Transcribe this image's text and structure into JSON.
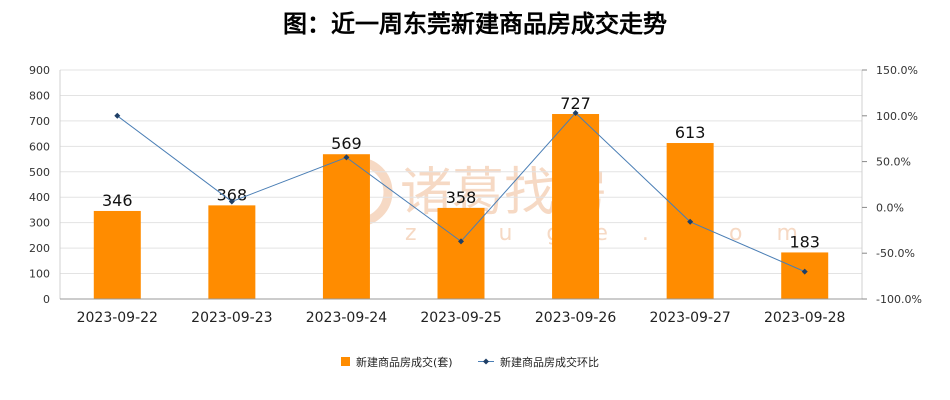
{
  "title": "图：近一周东莞新建商品房成交走势",
  "watermark": {
    "main": "诸葛找房",
    "sub": "zhuge.com"
  },
  "colors": {
    "bar": "#ff8c00",
    "line": "#4a7eb5",
    "marker": "#1f3f66",
    "grid": "#e3e3e3"
  },
  "chart_data": {
    "type": "bar",
    "categories": [
      "2023-09-22",
      "2023-09-23",
      "2023-09-24",
      "2023-09-25",
      "2023-09-26",
      "2023-09-27",
      "2023-09-28"
    ],
    "series": [
      {
        "name": "新建商品房成交(套)",
        "type": "bar",
        "axis": "left",
        "values": [
          346,
          368,
          569,
          358,
          727,
          613,
          183
        ],
        "data_labels": [
          "346",
          "368",
          "569",
          "358",
          "727",
          "613",
          "183"
        ]
      },
      {
        "name": "新建商品房成交环比",
        "type": "line",
        "axis": "right",
        "values": [
          100.0,
          6.4,
          54.6,
          -37.1,
          103.1,
          -15.7,
          -70.1
        ]
      }
    ],
    "y_left": {
      "ylim": [
        0,
        900
      ],
      "ticks": [
        0,
        100,
        200,
        300,
        400,
        500,
        600,
        700,
        800,
        900
      ],
      "tick_labels": [
        "0",
        "100",
        "200",
        "300",
        "400",
        "500",
        "600",
        "700",
        "800",
        "900"
      ]
    },
    "y_right": {
      "ylim": [
        -100,
        150
      ],
      "ticks": [
        -100,
        -50,
        0,
        50,
        100,
        150
      ],
      "tick_labels": [
        "-100.0%",
        "-50.0%",
        "0.0%",
        "50.0%",
        "100.0%",
        "150.0%"
      ]
    },
    "grid": true,
    "legend_position": "bottom"
  }
}
